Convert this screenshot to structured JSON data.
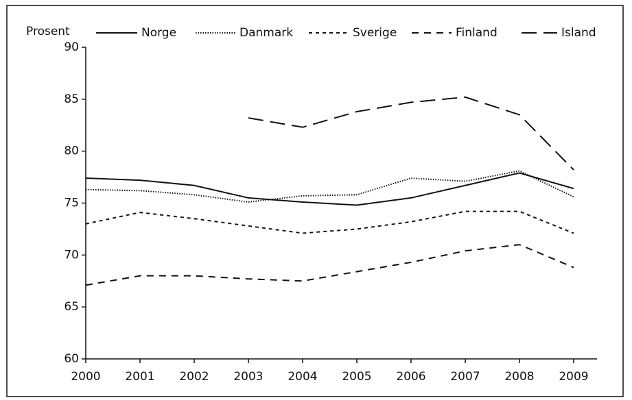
{
  "chart_data": {
    "type": "line",
    "y_label": "Prosent",
    "categories": [
      "2000",
      "2001",
      "2002",
      "2003",
      "2004",
      "2005",
      "2006",
      "2007",
      "2008",
      "2009"
    ],
    "series": [
      {
        "name": "Norge",
        "color": "#111111",
        "dash": "solid",
        "values": [
          77.4,
          77.2,
          76.7,
          75.5,
          75.1,
          74.8,
          75.5,
          76.7,
          77.9,
          76.4
        ]
      },
      {
        "name": "Danmark",
        "color": "#111111",
        "dash": "dotted",
        "values": [
          76.3,
          76.2,
          75.8,
          75.1,
          75.7,
          75.8,
          77.4,
          77.1,
          78.1,
          75.6
        ]
      },
      {
        "name": "Sverige",
        "color": "#111111",
        "dash": "short",
        "values": [
          73.0,
          74.1,
          73.5,
          72.8,
          72.1,
          72.5,
          73.2,
          74.2,
          74.2,
          72.1
        ]
      },
      {
        "name": "Finland",
        "color": "#111111",
        "dash": "medium",
        "values": [
          67.1,
          68.0,
          68.0,
          67.7,
          67.5,
          68.4,
          69.3,
          70.4,
          71.0,
          68.8
        ]
      },
      {
        "name": "Island",
        "color": "#111111",
        "dash": "long",
        "values": [
          null,
          null,
          null,
          83.2,
          82.3,
          83.8,
          84.7,
          85.2,
          83.5,
          78.2
        ]
      }
    ],
    "ylim": [
      60,
      90
    ],
    "yticks": [
      60,
      65,
      70,
      75,
      80,
      85,
      90
    ]
  }
}
